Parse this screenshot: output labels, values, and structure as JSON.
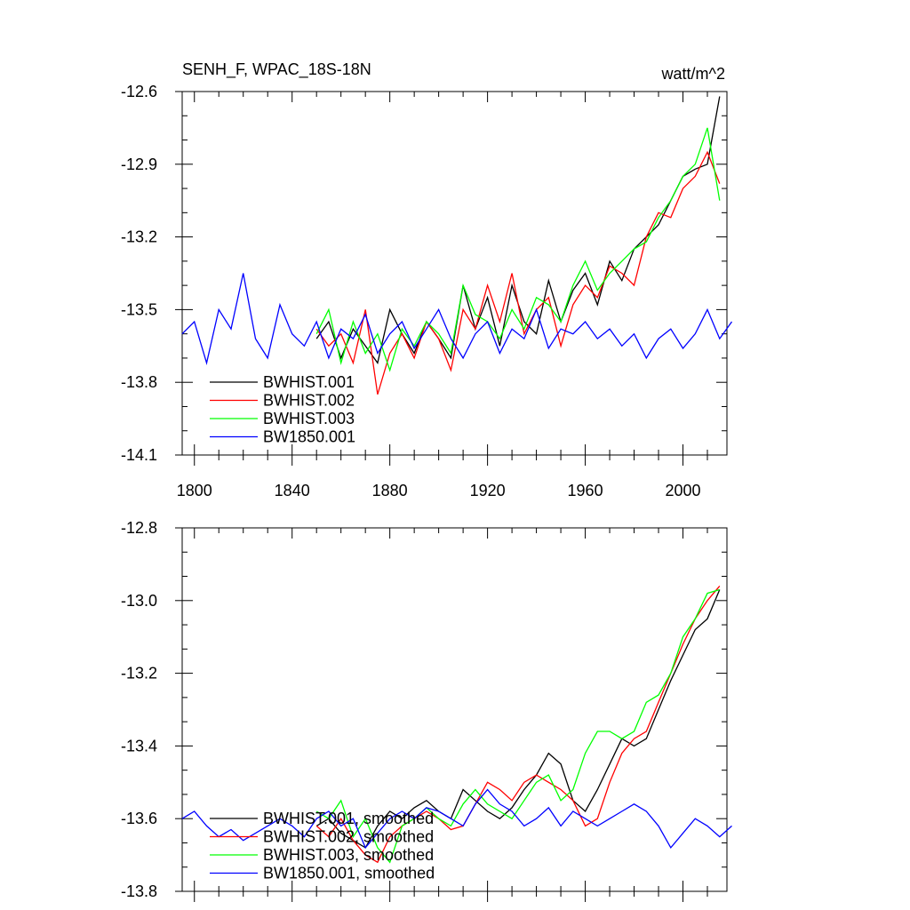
{
  "chart_data": [
    {
      "type": "line",
      "title": "SENH_F, WPAC_18S-18N",
      "units": "watt/m^2",
      "xlim": [
        1795,
        2018
      ],
      "ylim": [
        -14.1,
        -12.6
      ],
      "xticks": [
        1800,
        1840,
        1880,
        1920,
        1960,
        2000
      ],
      "yticks": [
        -14.1,
        -13.8,
        -13.5,
        -13.2,
        -12.9,
        -12.6
      ],
      "ytick_labels": [
        "-14.1",
        "-13.8",
        "-13.5",
        "-13.2",
        "-12.9",
        "-12.6"
      ],
      "legend_position": "lower-left",
      "series": [
        {
          "name": "BWHIST.001",
          "color": "#000000",
          "x_start": 1850,
          "step": 5,
          "values": [
            -13.62,
            -13.55,
            -13.7,
            -13.58,
            -13.65,
            -13.72,
            -13.5,
            -13.6,
            -13.68,
            -13.55,
            -13.62,
            -13.7,
            -13.4,
            -13.58,
            -13.45,
            -13.65,
            -13.4,
            -13.55,
            -13.6,
            -13.38,
            -13.55,
            -13.42,
            -13.35,
            -13.48,
            -13.3,
            -13.38,
            -13.25,
            -13.2,
            -13.15,
            -13.05,
            -12.95,
            -12.92,
            -12.9,
            -12.62
          ]
        },
        {
          "name": "BWHIST.002",
          "color": "#ff0000",
          "x_start": 1850,
          "step": 5,
          "values": [
            -13.58,
            -13.65,
            -13.6,
            -13.72,
            -13.5,
            -13.85,
            -13.68,
            -13.6,
            -13.7,
            -13.55,
            -13.62,
            -13.75,
            -13.5,
            -13.58,
            -13.4,
            -13.55,
            -13.35,
            -13.6,
            -13.5,
            -13.45,
            -13.65,
            -13.48,
            -13.4,
            -13.45,
            -13.32,
            -13.35,
            -13.4,
            -13.2,
            -13.1,
            -13.12,
            -13.0,
            -12.95,
            -12.85,
            -12.98
          ]
        },
        {
          "name": "BWHIST.003",
          "color": "#00ff00",
          "x_start": 1850,
          "step": 5,
          "values": [
            -13.6,
            -13.5,
            -13.72,
            -13.55,
            -13.68,
            -13.6,
            -13.75,
            -13.58,
            -13.65,
            -13.55,
            -13.6,
            -13.68,
            -13.4,
            -13.52,
            -13.55,
            -13.62,
            -13.5,
            -13.58,
            -13.45,
            -13.48,
            -13.55,
            -13.4,
            -13.3,
            -13.42,
            -13.35,
            -13.3,
            -13.25,
            -13.22,
            -13.12,
            -13.05,
            -12.95,
            -12.9,
            -12.75,
            -13.05
          ]
        },
        {
          "name": "BW1850.001",
          "color": "#0000ff",
          "x_start": 1795,
          "step": 5,
          "values": [
            -13.6,
            -13.55,
            -13.72,
            -13.5,
            -13.58,
            -13.35,
            -13.62,
            -13.7,
            -13.48,
            -13.6,
            -13.65,
            -13.55,
            -13.7,
            -13.58,
            -13.62,
            -13.52,
            -13.68,
            -13.6,
            -13.55,
            -13.66,
            -13.58,
            -13.5,
            -13.62,
            -13.7,
            -13.6,
            -13.55,
            -13.68,
            -13.58,
            -13.62,
            -13.5,
            -13.66,
            -13.58,
            -13.6,
            -13.55,
            -13.62,
            -13.58,
            -13.65,
            -13.6,
            -13.7,
            -13.62,
            -13.58,
            -13.66,
            -13.6,
            -13.5,
            -13.62,
            -13.55
          ]
        }
      ]
    },
    {
      "type": "line",
      "title": "",
      "xlim": [
        1795,
        2018
      ],
      "ylim": [
        -13.8,
        -12.8
      ],
      "xticks": [
        1800,
        1840,
        1880,
        1920,
        1960,
        2000
      ],
      "yticks": [
        -13.8,
        -13.6,
        -13.4,
        -13.2,
        -13.0,
        -12.8
      ],
      "ytick_labels": [
        "-13.8",
        "-13.6",
        "-13.4",
        "-13.2",
        "-13.0",
        "-12.8"
      ],
      "legend_position": "lower-left",
      "series": [
        {
          "name": "BWHIST.001, smoothed",
          "color": "#000000",
          "x_start": 1850,
          "step": 5,
          "values": [
            -13.62,
            -13.6,
            -13.64,
            -13.66,
            -13.68,
            -13.62,
            -13.58,
            -13.6,
            -13.57,
            -13.55,
            -13.58,
            -13.6,
            -13.52,
            -13.55,
            -13.58,
            -13.6,
            -13.57,
            -13.52,
            -13.48,
            -13.42,
            -13.45,
            -13.55,
            -13.58,
            -13.52,
            -13.45,
            -13.38,
            -13.4,
            -13.38,
            -13.3,
            -13.22,
            -13.15,
            -13.08,
            -13.05,
            -12.97
          ]
        },
        {
          "name": "BWHIST.002, smoothed",
          "color": "#ff0000",
          "x_start": 1850,
          "step": 5,
          "values": [
            -13.62,
            -13.65,
            -13.6,
            -13.66,
            -13.7,
            -13.72,
            -13.65,
            -13.62,
            -13.6,
            -13.58,
            -13.6,
            -13.63,
            -13.62,
            -13.56,
            -13.5,
            -13.52,
            -13.55,
            -13.5,
            -13.48,
            -13.5,
            -13.52,
            -13.55,
            -13.62,
            -13.6,
            -13.5,
            -13.42,
            -13.38,
            -13.36,
            -13.28,
            -13.2,
            -13.12,
            -13.05,
            -13.0,
            -12.96
          ]
        },
        {
          "name": "BWHIST.003, smoothed",
          "color": "#00ff00",
          "x_start": 1850,
          "step": 5,
          "values": [
            -13.58,
            -13.6,
            -13.55,
            -13.65,
            -13.6,
            -13.68,
            -13.72,
            -13.62,
            -13.6,
            -13.57,
            -13.6,
            -13.62,
            -13.56,
            -13.52,
            -13.56,
            -13.58,
            -13.6,
            -13.55,
            -13.5,
            -13.48,
            -13.55,
            -13.52,
            -13.42,
            -13.36,
            -13.36,
            -13.38,
            -13.36,
            -13.28,
            -13.26,
            -13.2,
            -13.1,
            -13.05,
            -12.98,
            -12.97
          ]
        },
        {
          "name": "BW1850.001, smoothed",
          "color": "#0000ff",
          "x_start": 1795,
          "step": 5,
          "values": [
            -13.6,
            -13.58,
            -13.62,
            -13.65,
            -13.63,
            -13.66,
            -13.64,
            -13.62,
            -13.6,
            -13.62,
            -13.65,
            -13.6,
            -13.58,
            -13.62,
            -13.6,
            -13.68,
            -13.64,
            -13.6,
            -13.58,
            -13.6,
            -13.57,
            -13.58,
            -13.6,
            -13.62,
            -13.56,
            -13.52,
            -13.56,
            -13.58,
            -13.62,
            -13.6,
            -13.57,
            -13.62,
            -13.58,
            -13.6,
            -13.62,
            -13.6,
            -13.58,
            -13.56,
            -13.58,
            -13.62,
            -13.68,
            -13.64,
            -13.6,
            -13.62,
            -13.65,
            -13.62
          ]
        }
      ]
    }
  ]
}
